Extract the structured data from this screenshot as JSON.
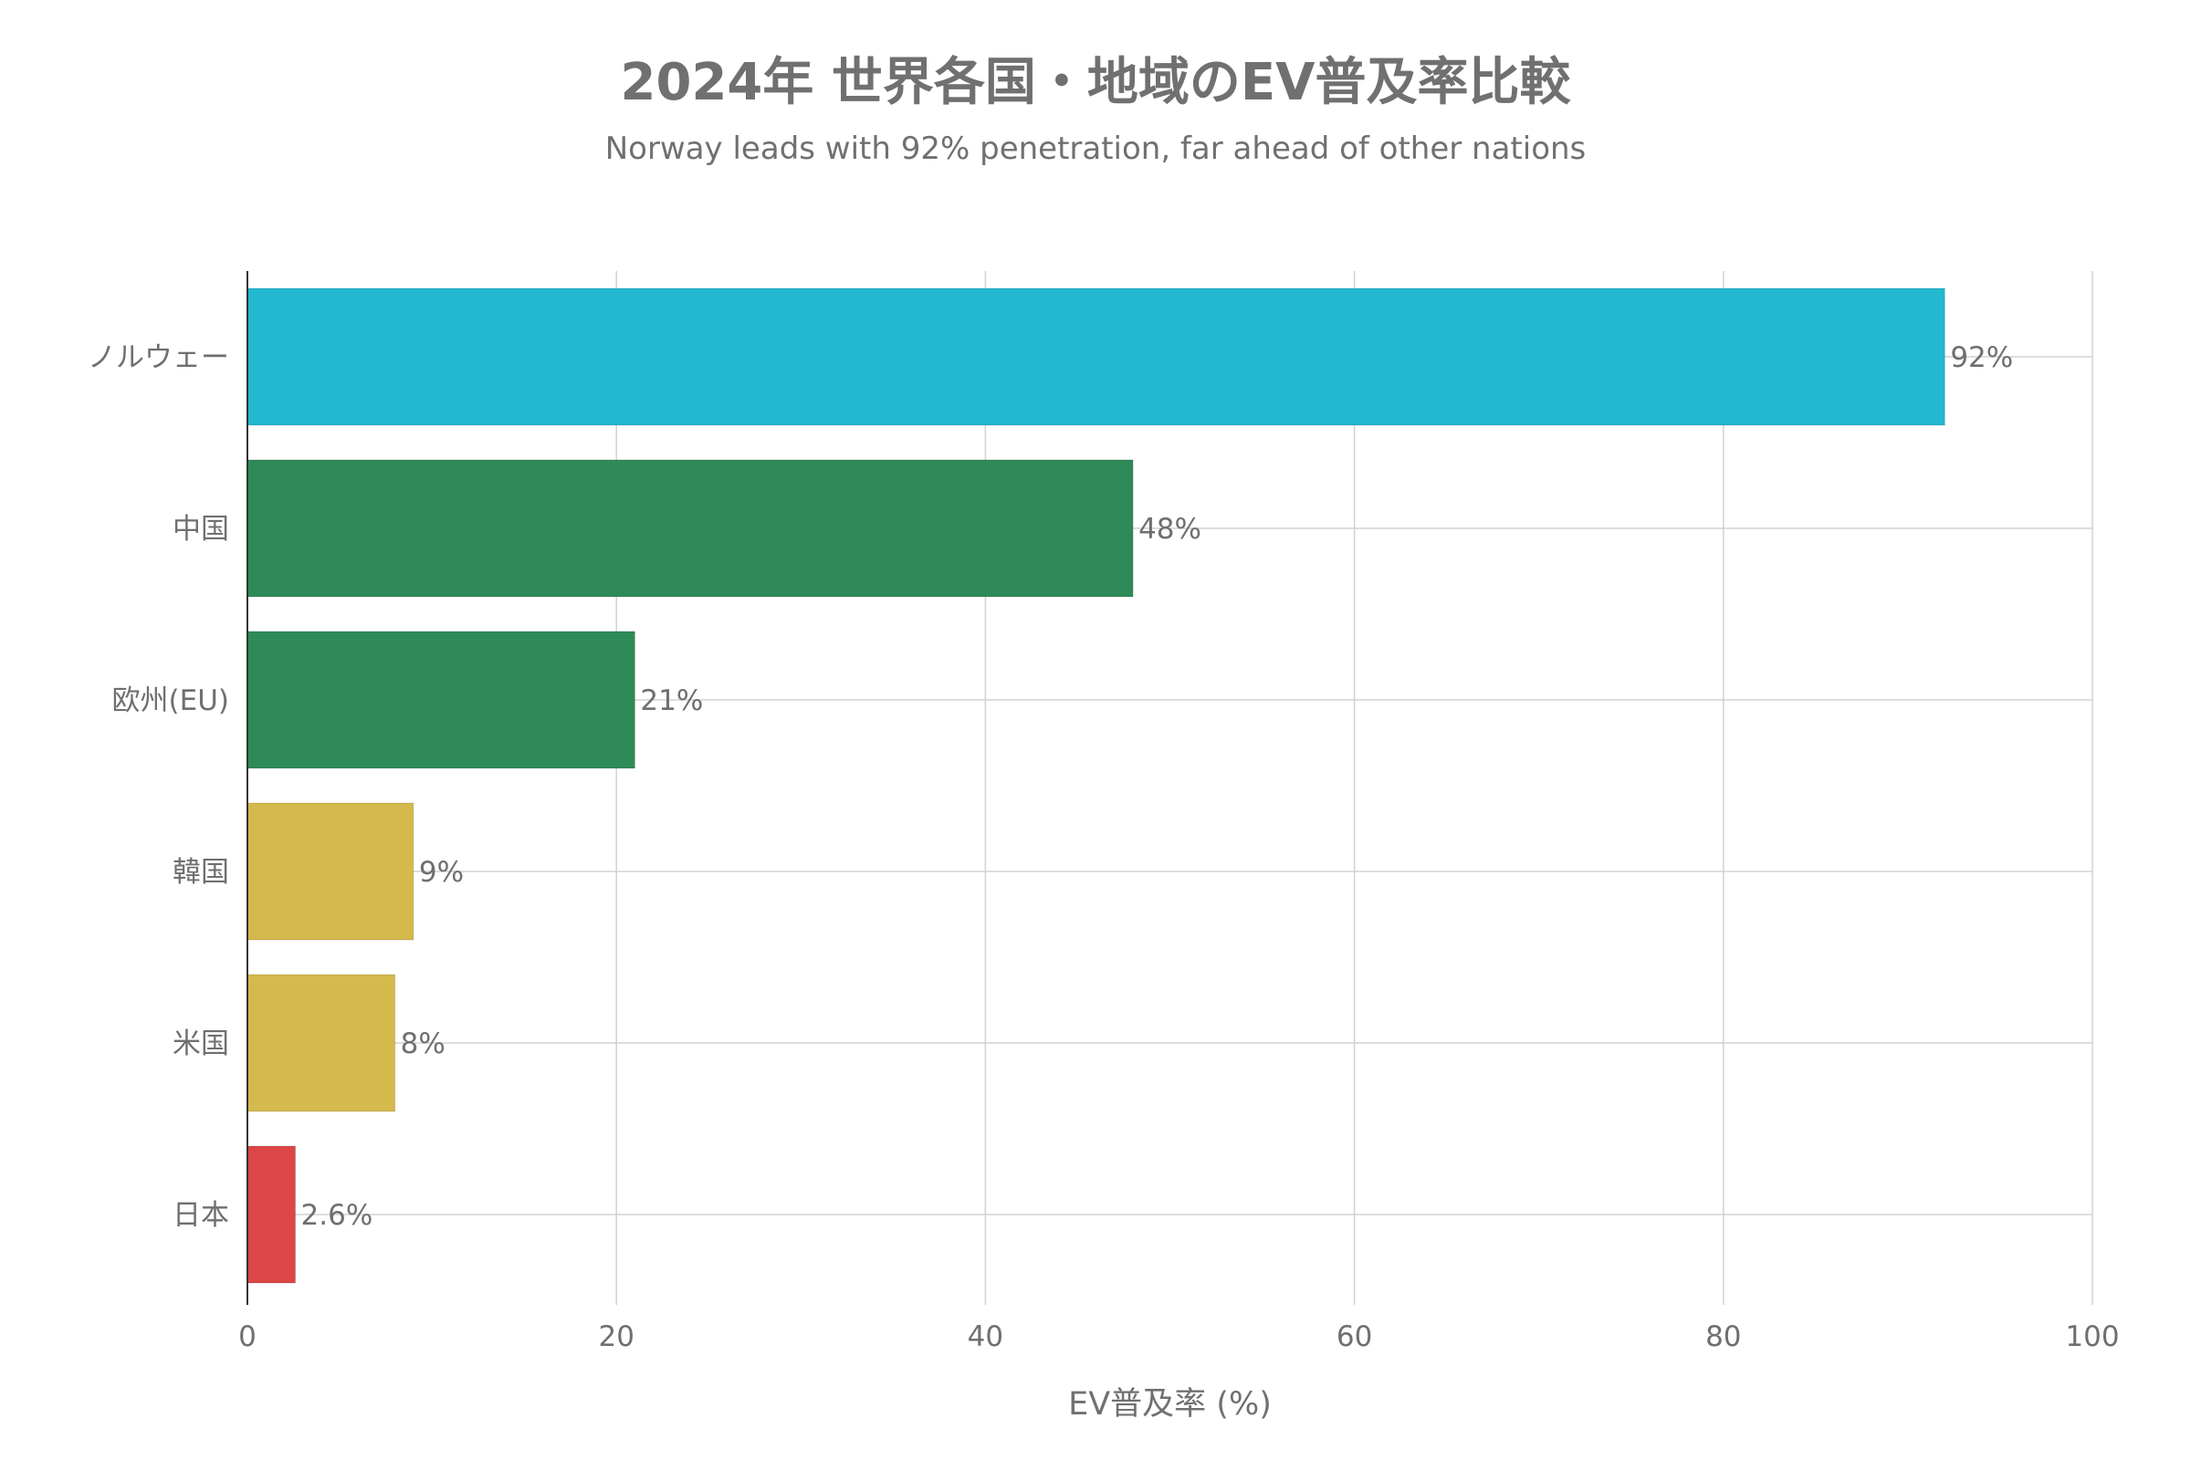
{
  "chart_data": {
    "type": "bar",
    "orientation": "horizontal",
    "title": "2024年 世界各国・地域のEV普及率比較",
    "subtitle": "Norway leads with 92% penetration, far ahead of other nations",
    "xlabel": "EV普及率 (%)",
    "ylabel": "",
    "xlim": [
      0,
      100
    ],
    "x_ticks": [
      "0",
      "20",
      "40",
      "60",
      "80",
      "100"
    ],
    "grid": true,
    "categories": [
      "ノルウェー",
      "中国",
      "欧州(EU)",
      "韓国",
      "米国",
      "日本"
    ],
    "values": [
      92,
      48,
      21,
      9,
      8,
      2.6
    ],
    "data_labels": [
      "92%",
      "48%",
      "21%",
      "9%",
      "8%",
      "2.6%"
    ],
    "colors": [
      "#22b8cf",
      "#2e8b57",
      "#2e8b57",
      "#d4b94c",
      "#d4b94c",
      "#dc4646"
    ]
  }
}
